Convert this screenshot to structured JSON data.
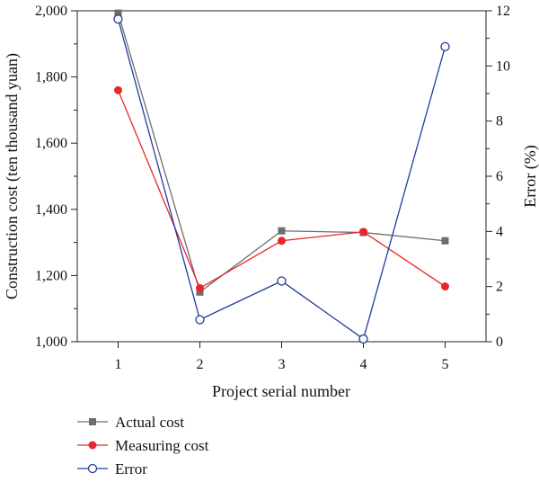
{
  "chart_data": {
    "type": "line",
    "xlabel": "Project serial number",
    "ylabel_left": "Construction cost (ten thousand yuan)",
    "ylabel_right": "Error (%)",
    "x": [
      1,
      2,
      3,
      4,
      5
    ],
    "x_ticks": [
      "1",
      "2",
      "3",
      "4",
      "5"
    ],
    "xlim": [
      0.5,
      5.5
    ],
    "ylim_left": [
      1000,
      2000
    ],
    "ylim_right": [
      0,
      12
    ],
    "left_ticks": [
      "1,000",
      "1,200",
      "1,400",
      "1,600",
      "1,800",
      "2,000"
    ],
    "right_ticks": [
      "0",
      "2",
      "4",
      "6",
      "8",
      "10",
      "12"
    ],
    "grid": false,
    "legend_placement": "bottom-left",
    "series": [
      {
        "name": "Actual cost",
        "axis": "left",
        "values": [
          1993,
          1150,
          1335,
          1330,
          1305
        ],
        "color": "#6d6d6d",
        "marker": "square"
      },
      {
        "name": "Measuring cost",
        "axis": "left",
        "values": [
          1760,
          1162,
          1305,
          1332,
          1167
        ],
        "color": "#e8272c",
        "marker": "circle"
      },
      {
        "name": "Error",
        "axis": "right",
        "values": [
          11.7,
          0.8,
          2.2,
          0.1,
          10.7
        ],
        "color": "#1f3d99",
        "marker": "open-circle"
      }
    ]
  }
}
